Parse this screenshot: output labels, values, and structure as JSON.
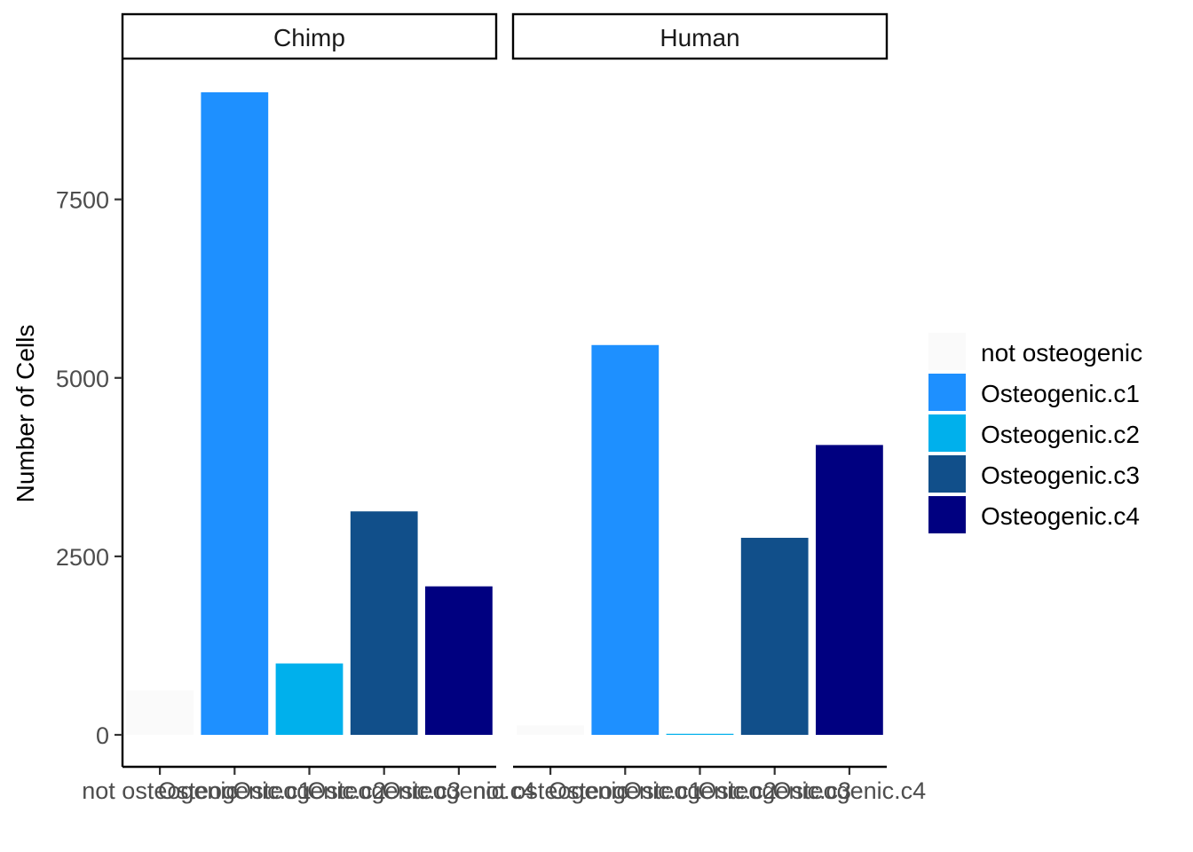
{
  "chart_data": {
    "type": "bar",
    "ylabel": "Number of Cells",
    "xlabel": "",
    "ylim": [
      0,
      9420
    ],
    "yticks": [
      0,
      2500,
      5000,
      7500
    ],
    "categories": [
      "not osteogenic",
      "Osteogenic.c1",
      "Osteogenic.c2",
      "Osteogenic.c3",
      "Osteogenic.c4"
    ],
    "colors": {
      "not osteogenic": "#fafafa",
      "Osteogenic.c1": "#1e90ff",
      "Osteogenic.c2": "#00b0ec",
      "Osteogenic.c3": "#114f8a",
      "Osteogenic.c4": "#000080"
    },
    "facets": [
      {
        "name": "Chimp",
        "values": [
          620,
          9000,
          1000,
          3130,
          2080
        ]
      },
      {
        "name": "Human",
        "values": [
          130,
          5460,
          15,
          2760,
          4060
        ]
      }
    ],
    "legend": {
      "position": "right",
      "entries": [
        "not osteogenic",
        "Osteogenic.c1",
        "Osteogenic.c2",
        "Osteogenic.c3",
        "Osteogenic.c4"
      ]
    },
    "grid": false
  }
}
